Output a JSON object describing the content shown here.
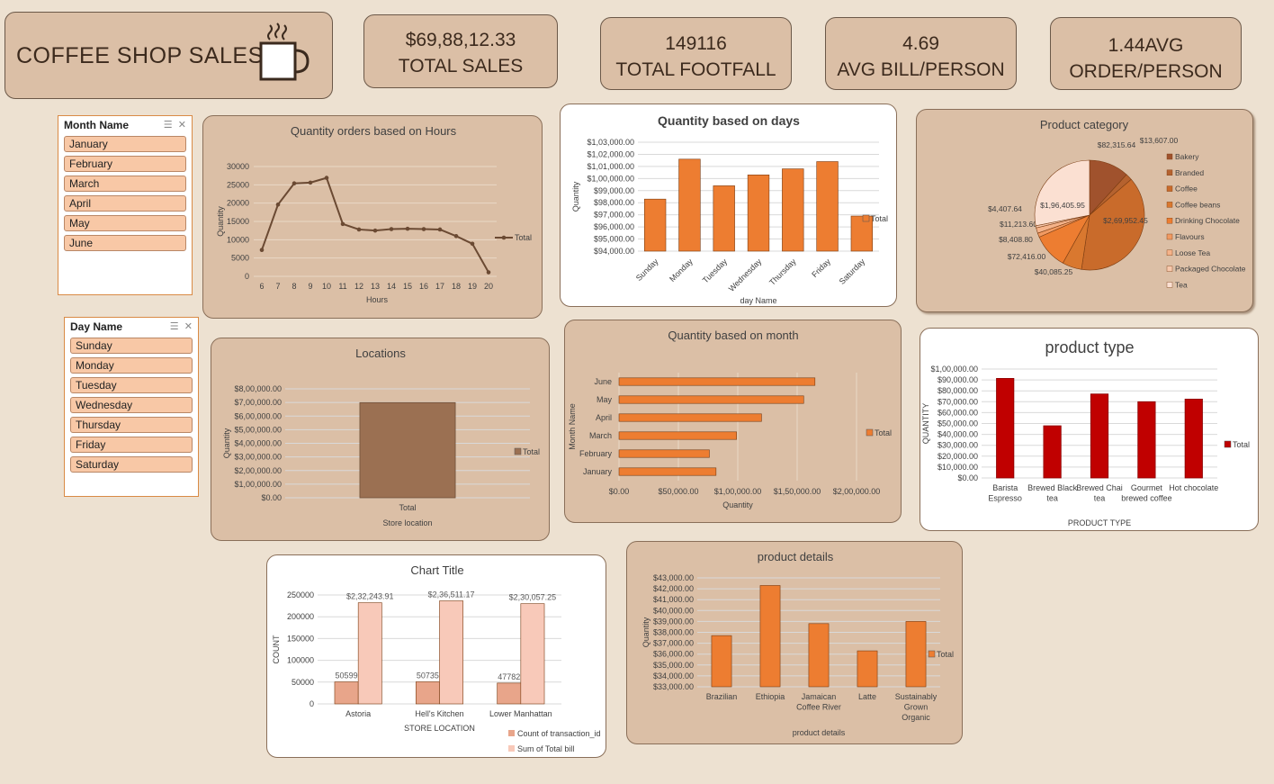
{
  "header": {
    "title": "COFFEE SHOP SALES"
  },
  "kpis": [
    {
      "value": "$69,88,12.33",
      "label": "TOTAL SALES"
    },
    {
      "value": "149116",
      "label": "TOTAL FOOTFALL"
    },
    {
      "value": "4.69",
      "label": "AVG BILL/PERSON"
    },
    {
      "value": "1.44AVG",
      "label": "ORDER/PERSON"
    }
  ],
  "slicers": {
    "month": {
      "title": "Month Name",
      "items": [
        "January",
        "February",
        "March",
        "April",
        "May",
        "June"
      ]
    },
    "day": {
      "title": "Day Name",
      "items": [
        "Sunday",
        "Monday",
        "Tuesday",
        "Wednesday",
        "Thursday",
        "Friday",
        "Saturday"
      ]
    }
  },
  "chart_data": [
    {
      "id": "hours",
      "type": "line",
      "title": "Quantity orders based on Hours",
      "xlabel": "Hours",
      "ylabel": "Quantity",
      "categories": [
        "6",
        "7",
        "8",
        "9",
        "10",
        "11",
        "12",
        "13",
        "14",
        "15",
        "16",
        "17",
        "18",
        "19",
        "20"
      ],
      "series": [
        {
          "name": "Total",
          "values": [
            7200,
            19600,
            25400,
            25600,
            26900,
            14300,
            12800,
            12500,
            12900,
            13000,
            12900,
            12800,
            11000,
            8900,
            1100
          ]
        }
      ],
      "ylim": [
        0,
        30000
      ],
      "yticks": [
        "0",
        "5000",
        "10000",
        "15000",
        "20000",
        "25000",
        "30000"
      ],
      "legend": "right",
      "color": "#6b4a33"
    },
    {
      "id": "days",
      "type": "bar",
      "title": "Quantity based on days",
      "xlabel": "day Name",
      "ylabel": "Quantity",
      "categories": [
        "Sunday",
        "Monday",
        "Tuesday",
        "Wednesday",
        "Thursday",
        "Friday",
        "Saturday"
      ],
      "series": [
        {
          "name": "Total",
          "values": [
            98300,
            101600,
            99400,
            100300,
            100800,
            101400,
            96900
          ]
        }
      ],
      "ylim": [
        94000,
        103000
      ],
      "yticks": [
        "$94,000.00",
        "$95,000.00",
        "$96,000.00",
        "$97,000.00",
        "$98,000.00",
        "$99,000.00",
        "$1,00,000.00",
        "$1,01,000.00",
        "$1,02,000.00",
        "$1,03,000.00"
      ],
      "legend": "right",
      "color": "#ed7d31"
    },
    {
      "id": "category",
      "type": "pie",
      "title": "Product category",
      "categories": [
        "Bakery",
        "Branded",
        "Coffee",
        "Coffee beans",
        "Drinking Chocolate",
        "Flavours",
        "Loose Tea",
        "Packaged Chocolate",
        "Tea"
      ],
      "values": [
        82315.64,
        13607.0,
        269952.45,
        40085.25,
        72416.0,
        8408.8,
        11213.6,
        4407.64,
        196405.95
      ],
      "labels": [
        "$82,315.64",
        "$13,607.00",
        "$2,69,952.45",
        "$40,085.25",
        "$72,416.00",
        "$8,408.80",
        "$11,213.60",
        "$4,407.64",
        "$1,96,405.95"
      ],
      "colors": [
        "#a0522d",
        "#b5622f",
        "#c96b2b",
        "#d9782f",
        "#ed7d31",
        "#f19a62",
        "#f5b38a",
        "#f8c9ad",
        "#fbe0d2"
      ],
      "legend": "right"
    },
    {
      "id": "locations",
      "type": "bar",
      "title": "Locations",
      "xlabel": "Store location",
      "ylabel": "Quantity",
      "categories": [
        "Total"
      ],
      "series": [
        {
          "name": "Total",
          "values": [
            698812.33
          ]
        }
      ],
      "ylim": [
        0,
        800000
      ],
      "yticks": [
        "$0.00",
        "$1,00,000.00",
        "$2,00,000.00",
        "$3,00,000.00",
        "$4,00,000.00",
        "$5,00,000.00",
        "$6,00,000.00",
        "$7,00,000.00",
        "$8,00,000.00"
      ],
      "legend": "right",
      "color": "#9b7052"
    },
    {
      "id": "months",
      "type": "bar",
      "orientation": "horizontal",
      "title": "Quantity based on month",
      "xlabel": "Quantity",
      "ylabel": "Month Name",
      "categories": [
        "January",
        "February",
        "March",
        "April",
        "May",
        "June"
      ],
      "series": [
        {
          "name": "Total",
          "values": [
            81700,
            76100,
            99000,
            120000,
            155500,
            165000
          ]
        }
      ],
      "xlim": [
        0,
        200000
      ],
      "xticks": [
        "$0.00",
        "$50,000.00",
        "$1,00,000.00",
        "$1,50,000.00",
        "$2,00,000.00"
      ],
      "legend": "right",
      "color": "#ed7d31"
    },
    {
      "id": "ptype",
      "type": "bar",
      "title": "product type",
      "xlabel": "PRODUCT TYPE",
      "ylabel": "QUANTITY",
      "categories": [
        "Barista Espresso",
        "Brewed Black tea",
        "Brewed Chai tea",
        "Gourmet brewed coffee",
        "Hot chocolate"
      ],
      "series": [
        {
          "name": "Total",
          "values": [
            91400,
            47900,
            77100,
            70000,
            72400
          ]
        }
      ],
      "ylim": [
        0,
        100000
      ],
      "yticks": [
        "$0.00",
        "$10,000.00",
        "$20,000.00",
        "$30,000.00",
        "$40,000.00",
        "$50,000.00",
        "$60,000.00",
        "$70,000.00",
        "$80,000.00",
        "$90,000.00",
        "$1,00,000.00"
      ],
      "legend": "right",
      "color": "#c00000"
    },
    {
      "id": "store",
      "type": "bar",
      "title": "Chart Title",
      "xlabel": "STORE LOCATION",
      "ylabel": "COUNT",
      "categories": [
        "Astoria",
        "Hell's Kitchen",
        "Lower Manhattan"
      ],
      "series": [
        {
          "name": "Count of transaction_id",
          "values": [
            50599,
            50735,
            47782
          ],
          "labels": [
            "50599",
            "50735",
            "47782"
          ]
        },
        {
          "name": "Sum of Total bill",
          "values": [
            232243.91,
            236511.17,
            230057.25
          ],
          "labels": [
            "$2,32,243.91",
            "$2,36,511.17",
            "$2,30,057.25"
          ]
        }
      ],
      "ylim": [
        0,
        250000
      ],
      "yticks": [
        "0",
        "50000",
        "100000",
        "150000",
        "200000",
        "250000"
      ],
      "legend": "bottom",
      "colors": [
        "#e8a58a",
        "#f8c9b9"
      ]
    },
    {
      "id": "details",
      "type": "bar",
      "title": "product details",
      "xlabel": "product details",
      "ylabel": "Quantity",
      "categories": [
        "Brazilian",
        "Ethiopia",
        "Jamaican Coffee River",
        "Latte",
        "Sustainably Grown Organic"
      ],
      "series": [
        {
          "name": "Total",
          "values": [
            37700,
            42300,
            38800,
            36300,
            39000
          ]
        }
      ],
      "ylim": [
        33000,
        43000
      ],
      "yticks": [
        "$33,000.00",
        "$34,000.00",
        "$35,000.00",
        "$36,000.00",
        "$37,000.00",
        "$38,000.00",
        "$39,000.00",
        "$40,000.00",
        "$41,000.00",
        "$42,000.00",
        "$43,000.00"
      ],
      "legend": "right",
      "color": "#ed7d31"
    }
  ]
}
